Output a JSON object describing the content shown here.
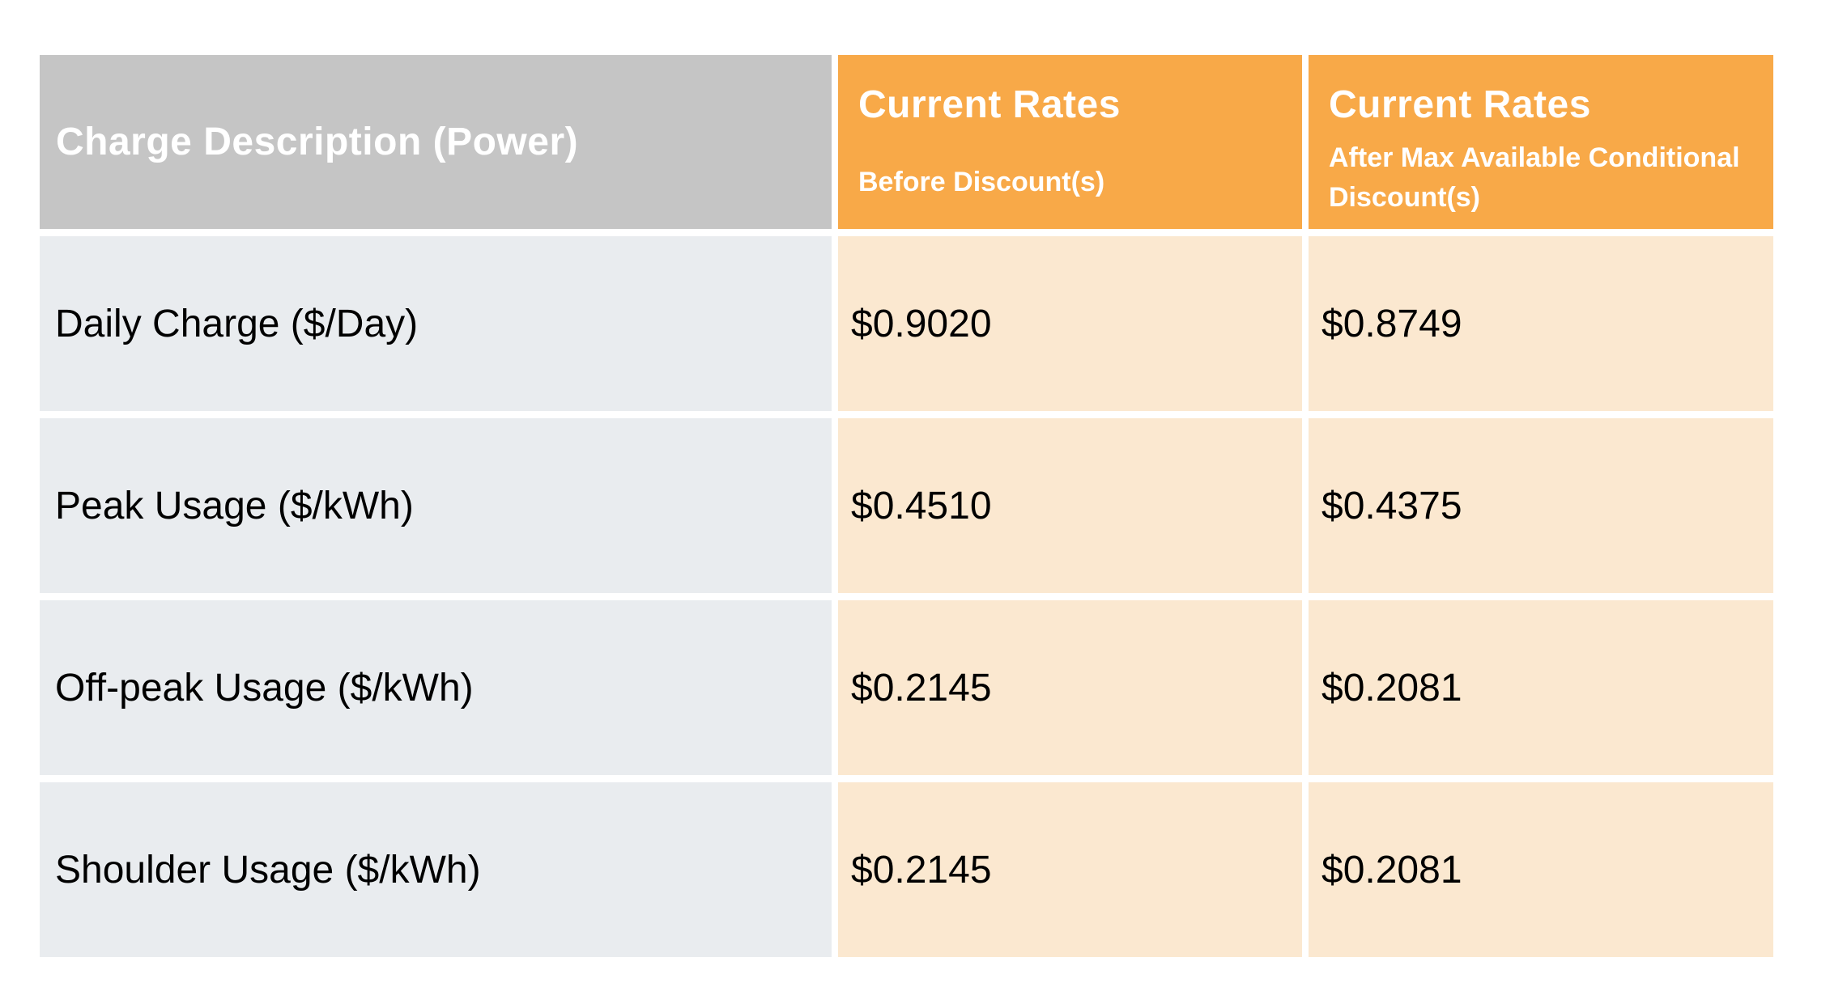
{
  "chart_data": {
    "type": "table",
    "column_headers": [
      {
        "title": "Charge Description (Power)",
        "subtitle": ""
      },
      {
        "title": "Current Rates",
        "subtitle": "Before Discount(s)",
        "subtitle_lines": [
          "Before Discount(s)"
        ]
      },
      {
        "title": "Current Rates",
        "subtitle": "After Max Available Conditional Discount(s)",
        "subtitle_lines": [
          "After Max Available Conditional",
          "Discount(s)"
        ]
      }
    ],
    "rows": [
      {
        "charge_description": "Daily Charge ($/Day)",
        "rate_before_discounts": "$0.9020",
        "rate_after_max_conditional_discounts": "$0.8749"
      },
      {
        "charge_description": "Peak Usage ($/kWh)",
        "rate_before_discounts": "$0.4510",
        "rate_after_max_conditional_discounts": "$0.4375"
      },
      {
        "charge_description": "Off-peak Usage ($/kWh)",
        "rate_before_discounts": "$0.2145",
        "rate_after_max_conditional_discounts": "$0.2081"
      },
      {
        "charge_description": "Shoulder Usage ($/kWh)",
        "rate_before_discounts": "$0.2145",
        "rate_after_max_conditional_discounts": "$0.2081"
      }
    ],
    "numeric_values": {
      "before_discounts": [
        0.902,
        0.451,
        0.2145,
        0.2145
      ],
      "after_max_conditional_discounts": [
        0.8749,
        0.4375,
        0.2081,
        0.2081
      ]
    },
    "layout_hints": {
      "grid": "off",
      "cell_gaps": "white separators between all cells"
    }
  },
  "colors": {
    "header_gray_bg": "#C5C5C5",
    "header_orange_bg": "#F8A948",
    "row_label_bg": "#E9ECEF",
    "row_value_bg": "#FBE8D0",
    "header_text": "#FFFFFF",
    "body_text": "#000000",
    "page_bg": "#FFFFFF"
  }
}
